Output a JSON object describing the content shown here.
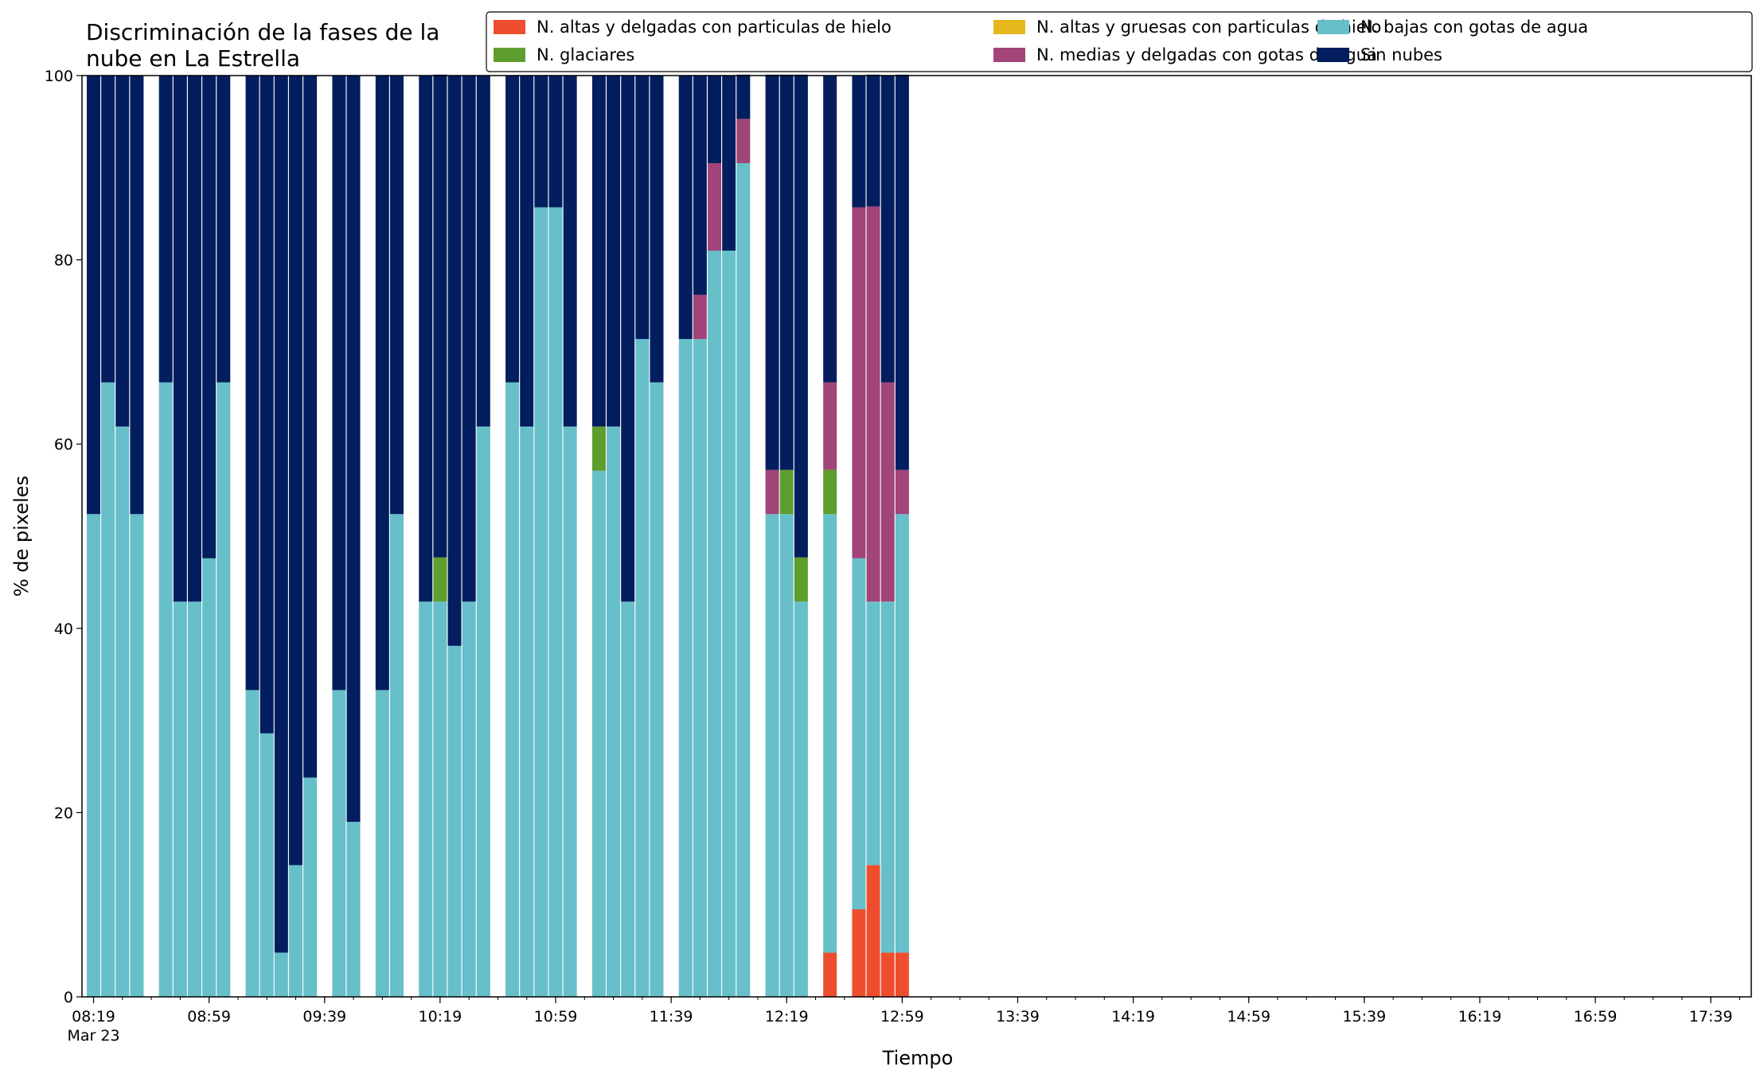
{
  "chart_data": {
    "type": "bar",
    "stacked": true,
    "title_lines": [
      "Discriminación de la fases de la",
      "nube en La Estrella"
    ],
    "xlabel": "Tiempo",
    "ylabel": "% de pixeles",
    "ylim": [
      0,
      100
    ],
    "yticks": [
      "0",
      "20",
      "40",
      "60",
      "80",
      "100"
    ],
    "xtick_labels": [
      "08:19",
      "08:59",
      "09:39",
      "10:19",
      "10:59",
      "11:39",
      "12:19",
      "12:59",
      "13:39",
      "14:19",
      "14:59",
      "15:39",
      "16:19",
      "16:59",
      "17:39"
    ],
    "date_label": "Mar 23",
    "grid": false,
    "legend_position": "top-right",
    "legend_order": [
      0,
      3,
      1,
      4,
      2,
      5
    ],
    "series": [
      {
        "name": "N. altas y delgadas con particulas de hielo",
        "color": "#ee4d2e"
      },
      {
        "name": "N. altas y gruesas con particulas de hielo",
        "color": "#e6b81e"
      },
      {
        "name": "N. bajas con gotas de agua",
        "color": "#66bfc9"
      },
      {
        "name": "N. glaciares",
        "color": "#5e9e2f"
      },
      {
        "name": "N. medias y delgadas con gotas de agua",
        "color": "#a14478"
      },
      {
        "name": "Sin nubes",
        "color": "#021e5f"
      }
    ],
    "bars": [
      {
        "time": "08:19",
        "values": [
          0,
          0,
          52.4,
          0,
          0,
          47.6
        ]
      },
      {
        "time": "08:24",
        "values": [
          0,
          0,
          66.7,
          0,
          0,
          33.3
        ]
      },
      {
        "time": "08:29",
        "values": [
          0,
          0,
          61.9,
          0,
          0,
          38.1
        ]
      },
      {
        "time": "08:34",
        "values": [
          0,
          0,
          52.4,
          0,
          0,
          47.6
        ]
      },
      {
        "time": "08:44",
        "values": [
          0,
          0,
          66.7,
          0,
          0,
          33.3
        ]
      },
      {
        "time": "08:49",
        "values": [
          0,
          0,
          42.9,
          0,
          0,
          57.1
        ]
      },
      {
        "time": "08:54",
        "values": [
          0,
          0,
          42.9,
          0,
          0,
          57.1
        ]
      },
      {
        "time": "08:59",
        "values": [
          0,
          0,
          47.6,
          0,
          0,
          52.4
        ]
      },
      {
        "time": "09:04",
        "values": [
          0,
          0,
          66.7,
          0,
          0,
          33.3
        ]
      },
      {
        "time": "09:14",
        "values": [
          0,
          0,
          33.3,
          0,
          0,
          66.7
        ]
      },
      {
        "time": "09:19",
        "values": [
          0,
          0,
          28.6,
          0,
          0,
          71.4
        ]
      },
      {
        "time": "09:24",
        "values": [
          0,
          0,
          4.8,
          0,
          0,
          95.2
        ]
      },
      {
        "time": "09:29",
        "values": [
          0,
          0,
          14.3,
          0,
          0,
          85.7
        ]
      },
      {
        "time": "09:34",
        "values": [
          0,
          0,
          23.8,
          0,
          0,
          76.2
        ]
      },
      {
        "time": "09:44",
        "values": [
          0,
          0,
          33.3,
          0,
          0,
          66.7
        ]
      },
      {
        "time": "09:49",
        "values": [
          0,
          0,
          19.0,
          0,
          0,
          81.0
        ]
      },
      {
        "time": "09:59",
        "values": [
          0,
          0,
          33.3,
          0,
          0,
          66.7
        ]
      },
      {
        "time": "10:04",
        "values": [
          0,
          0,
          52.4,
          0,
          0,
          47.6
        ]
      },
      {
        "time": "10:14",
        "values": [
          0,
          0,
          42.9,
          0,
          0,
          57.1
        ]
      },
      {
        "time": "10:19",
        "values": [
          0,
          0,
          42.9,
          4.8,
          0,
          52.4
        ]
      },
      {
        "time": "10:24",
        "values": [
          0,
          0,
          38.1,
          0,
          0,
          61.9
        ]
      },
      {
        "time": "10:29",
        "values": [
          0,
          0,
          42.9,
          0,
          0,
          57.1
        ]
      },
      {
        "time": "10:34",
        "values": [
          0,
          0,
          61.9,
          0,
          0,
          38.1
        ]
      },
      {
        "time": "10:44",
        "values": [
          0,
          0,
          66.7,
          0,
          0,
          33.3
        ]
      },
      {
        "time": "10:49",
        "values": [
          0,
          0,
          61.9,
          0,
          0,
          38.1
        ]
      },
      {
        "time": "10:54",
        "values": [
          0,
          0,
          85.7,
          0,
          0,
          14.3
        ]
      },
      {
        "time": "10:59",
        "values": [
          0,
          0,
          85.7,
          0,
          0,
          14.3
        ]
      },
      {
        "time": "11:04",
        "values": [
          0,
          0,
          61.9,
          0,
          0,
          38.1
        ]
      },
      {
        "time": "11:14",
        "values": [
          0,
          0,
          57.1,
          4.8,
          0,
          38.1
        ]
      },
      {
        "time": "11:19",
        "values": [
          0,
          0,
          61.9,
          0,
          0,
          38.1
        ]
      },
      {
        "time": "11:24",
        "values": [
          0,
          0,
          42.9,
          0,
          0,
          57.1
        ]
      },
      {
        "time": "11:29",
        "values": [
          0,
          0,
          71.4,
          0,
          0,
          28.6
        ]
      },
      {
        "time": "11:34",
        "values": [
          0,
          0,
          66.7,
          0,
          0,
          33.3
        ]
      },
      {
        "time": "11:44",
        "values": [
          0,
          0,
          71.4,
          0,
          0,
          28.6
        ]
      },
      {
        "time": "11:49",
        "values": [
          0,
          0,
          71.4,
          0,
          4.8,
          23.8
        ]
      },
      {
        "time": "11:54",
        "values": [
          0,
          0,
          81.0,
          0,
          9.5,
          9.5
        ]
      },
      {
        "time": "11:59",
        "values": [
          0,
          0,
          81.0,
          0,
          0,
          19.0
        ]
      },
      {
        "time": "12:04",
        "values": [
          0,
          0,
          90.5,
          0,
          4.8,
          4.8
        ]
      },
      {
        "time": "12:14",
        "values": [
          0,
          0,
          52.4,
          0,
          4.8,
          42.9
        ]
      },
      {
        "time": "12:19",
        "values": [
          0,
          0,
          52.4,
          4.8,
          0,
          42.9
        ]
      },
      {
        "time": "12:24",
        "values": [
          0,
          0,
          42.9,
          4.8,
          0,
          52.4
        ]
      },
      {
        "time": "12:34",
        "values": [
          4.8,
          0,
          47.6,
          4.8,
          9.5,
          33.3
        ]
      },
      {
        "time": "12:44",
        "values": [
          9.5,
          0,
          38.1,
          0,
          38.1,
          14.3
        ]
      },
      {
        "time": "12:49",
        "values": [
          14.3,
          0,
          28.6,
          0,
          42.9,
          14.3
        ]
      },
      {
        "time": "12:54",
        "values": [
          4.8,
          0,
          38.1,
          0,
          23.8,
          33.3
        ]
      },
      {
        "time": "12:59",
        "values": [
          4.8,
          0,
          47.6,
          0,
          4.8,
          42.9
        ]
      }
    ]
  }
}
